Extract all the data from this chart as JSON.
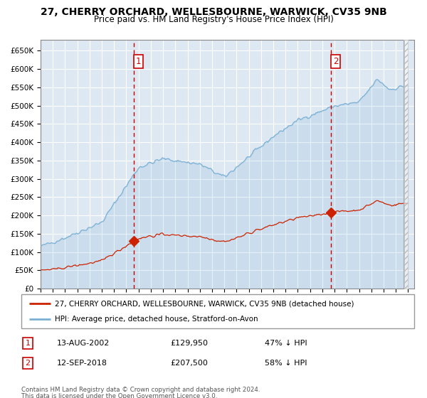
{
  "title1": "27, CHERRY ORCHARD, WELLESBOURNE, WARWICK, CV35 9NB",
  "title2": "Price paid vs. HM Land Registry's House Price Index (HPI)",
  "hpi_legend": "HPI: Average price, detached house, Stratford-on-Avon",
  "property_legend": "27, CHERRY ORCHARD, WELLESBOURNE, WARWICK, CV35 9NB (detached house)",
  "transaction1_date": "13-AUG-2002",
  "transaction1_price": 129950,
  "transaction1_pct": "47% ↓ HPI",
  "transaction2_date": "12-SEP-2018",
  "transaction2_price": 207500,
  "transaction2_pct": "58% ↓ HPI",
  "footnote1": "Contains HM Land Registry data © Crown copyright and database right 2024.",
  "footnote2": "This data is licensed under the Open Government Licence v3.0.",
  "ylim": [
    0,
    680000
  ],
  "yticks": [
    0,
    50000,
    100000,
    150000,
    200000,
    250000,
    300000,
    350000,
    400000,
    450000,
    500000,
    550000,
    600000,
    650000
  ],
  "hpi_color": "#7ab0d4",
  "property_color": "#cc2200",
  "vline_color": "#cc0000",
  "bg_plot": "#dde8f3",
  "grid_color": "#ffffff",
  "transaction1_year": 2002.62,
  "transaction2_year": 2018.71,
  "xstart": 1995,
  "xend": 2025
}
